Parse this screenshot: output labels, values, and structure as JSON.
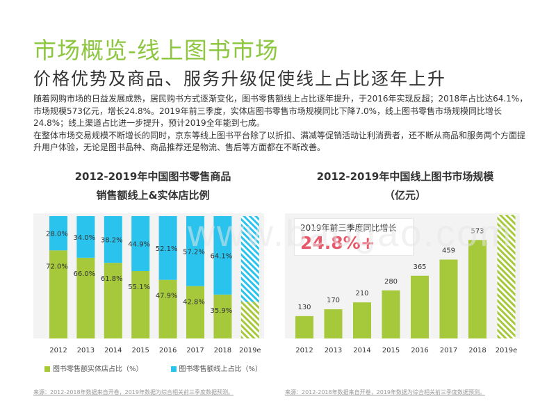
{
  "header": {
    "title": "市场概览-线上图书市场",
    "subtitle": "价格优势及商品、服务升级促使线上占比逐年上升"
  },
  "body": {
    "paragraph1": "随着网购市场的日益发展成熟，居民购书方式逐渐变化，图书零售额线上占比逐年提升，于2016年实现反超；2018年占比达64.1%，市场规模573亿元，增长24.8%。2019年前三季度，实体店图书零售市场规模同比下降7.0%，线上图书零售市场规模同比增长24.8%；线上渠道占比进一步提升，预计2019全年能到七成。",
    "paragraph2": "在整体市场交易规模不断增长的同时，京东等线上图书平台除了以折扣、满减等促销活动让利消费者，还不断从商品和服务两个方面提升用户体验，无论是图书品种、商品推荐还是物流、售后等方面都在不断改善。"
  },
  "colors": {
    "green": "#a5c93a",
    "blue": "#29c3ee",
    "title_green": "#8dc63f",
    "highlight": "#e8586b"
  },
  "chart_data": [
    {
      "type": "bar",
      "stacked": true,
      "percent": true,
      "title_line1": "2012-2019年中国图书零售商品",
      "title_line2": "销售额线上&实体店比例",
      "categories": [
        "2012",
        "2013",
        "2014",
        "2015",
        "2016",
        "2017",
        "2018",
        "2019e"
      ],
      "series": [
        {
          "name": "图书零售额实体店占比（%）",
          "color": "#a5c93a",
          "values": [
            72.0,
            66.0,
            61.8,
            55.1,
            47.9,
            42.8,
            35.9,
            30
          ],
          "labels": [
            "72.0%",
            "66.0%",
            "61.8%",
            "55.1%",
            "47.9%",
            "42.8%",
            "35.9%",
            ""
          ]
        },
        {
          "name": "图书零售额线上占比（%）",
          "color": "#29c3ee",
          "values": [
            28.0,
            34.0,
            38.2,
            44.9,
            52.1,
            57.2,
            64.1,
            70
          ],
          "labels": [
            "28.0%",
            "34.0%",
            "38.2%",
            "44.9%",
            "52.1%",
            "57.2%",
            "64.1%",
            ""
          ]
        }
      ],
      "estimated_last": true,
      "ylim": [
        0,
        100
      ],
      "legend_position": "bottom",
      "source": "来源：2012-2018年数据来自开卷，2019年数据为综合相关前三季度数据预测。"
    },
    {
      "type": "bar",
      "title_line1": "2012-2019年中国线上图书市场规模",
      "title_line2": "（亿元）",
      "categories": [
        "2012",
        "2013",
        "2014",
        "2015",
        "2016",
        "2017",
        "2018",
        "2019e"
      ],
      "values": [
        130,
        170,
        210,
        280,
        365,
        459,
        573,
        720
      ],
      "labels": [
        "130",
        "170",
        "210",
        "280",
        "365",
        "459",
        "573",
        ""
      ],
      "color": "#a5c93a",
      "estimated_last": true,
      "ylim": [
        0,
        720
      ],
      "annotation_label": "2019年前三季度同比增长",
      "annotation_value": "24.8%+",
      "source": "来源：2012-2018年数据来自开卷，2019年数据为综合相关前三季度数据预测。"
    }
  ]
}
